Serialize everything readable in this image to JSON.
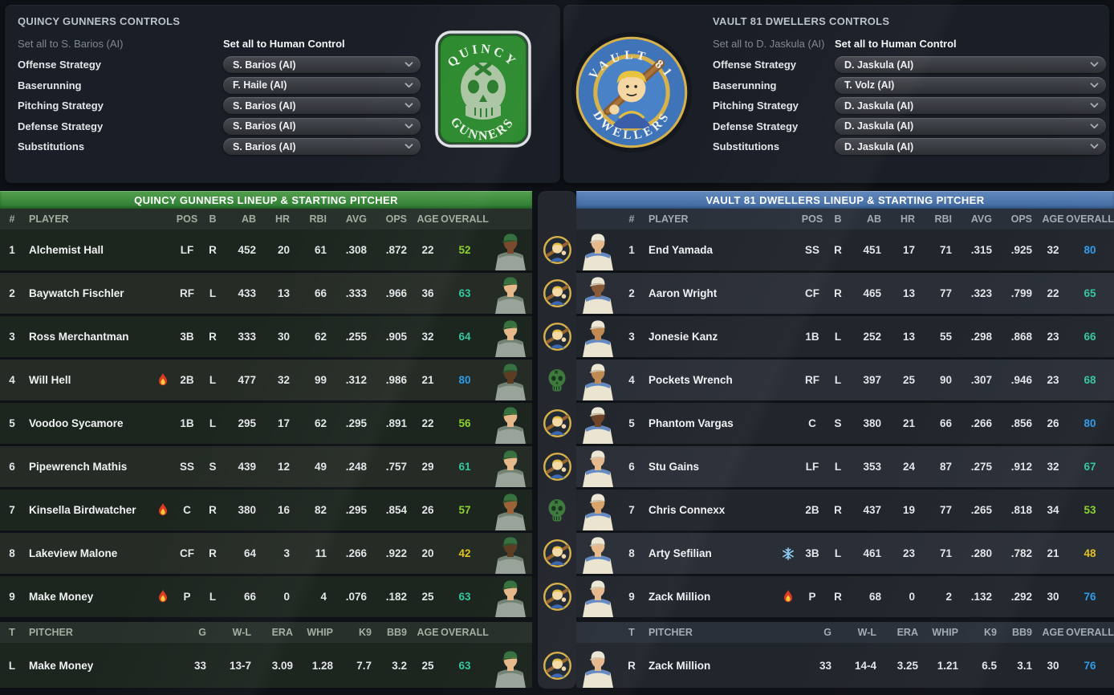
{
  "colors": {
    "left_header_bar": "#3a8c3b",
    "right_header_bar": "#4f7cb4",
    "overall_teal": "#35c79f",
    "overall_lime": "#8bd22f",
    "overall_blue": "#2f9ce8",
    "overall_yellow": "#e2c220"
  },
  "left_controls": {
    "title": "QUINCY GUNNERS CONTROLS",
    "set_all_ai": "Set all to S. Barios (AI)",
    "set_all_human": "Set all to Human Control",
    "rows": [
      {
        "label": "Offense Strategy",
        "value": "S. Barios (AI)"
      },
      {
        "label": "Baserunning",
        "value": "F. Haile (AI)"
      },
      {
        "label": "Pitching Strategy",
        "value": "S. Barios (AI)"
      },
      {
        "label": "Defense Strategy",
        "value": "S. Barios (AI)"
      },
      {
        "label": "Substitutions",
        "value": "S. Barios (AI)"
      }
    ],
    "logo": {
      "top_text": "QUINCY",
      "bottom_text": "GUNNERS",
      "icon": "skull-icon",
      "color": "#2c8a2e"
    }
  },
  "right_controls": {
    "title": "VAULT 81 DWELLERS CONTROLS",
    "set_all_ai": "Set all to D. Jaskula (AI)",
    "set_all_human": "Set all to Human Control",
    "rows": [
      {
        "label": "Offense Strategy",
        "value": "D. Jaskula (AI)"
      },
      {
        "label": "Baserunning",
        "value": "T. Volz (AI)"
      },
      {
        "label": "Pitching Strategy",
        "value": "D. Jaskula (AI)"
      },
      {
        "label": "Defense Strategy",
        "value": "D. Jaskula (AI)"
      },
      {
        "label": "Substitutions",
        "value": "D. Jaskula (AI)"
      }
    ],
    "logo": {
      "top_text": "VAULT 81",
      "bottom_text": "DWELLERS",
      "icon": "vault-boy-icon",
      "color": "#3f74b8"
    }
  },
  "batter_columns": [
    "#",
    "PLAYER",
    "POS",
    "B",
    "AB",
    "HR",
    "RBI",
    "AVG",
    "OPS",
    "AGE",
    "OVERALL"
  ],
  "pitcher_columns": [
    "T",
    "PITCHER",
    "G",
    "W-L",
    "ERA",
    "WHIP",
    "K9",
    "BB9",
    "AGE",
    "OVERALL"
  ],
  "left_table": {
    "title": "QUINCY GUNNERS LINEUP & STARTING PITCHER",
    "rows": [
      {
        "num": "1",
        "name": "Alchemist Hall",
        "badge": null,
        "pos": "LF",
        "b": "R",
        "ab": "452",
        "hr": "20",
        "rbi": "61",
        "avg": ".308",
        "ops": ".872",
        "age": "22",
        "overall": "52",
        "overall_color": "#8bd22f",
        "skin": "#7a4a2e"
      },
      {
        "num": "2",
        "name": "Baywatch Fischler",
        "badge": null,
        "pos": "RF",
        "b": "L",
        "ab": "433",
        "hr": "13",
        "rbi": "66",
        "avg": ".333",
        "ops": ".966",
        "age": "36",
        "overall": "63",
        "overall_color": "#35c79f",
        "skin": "#e6b98c"
      },
      {
        "num": "3",
        "name": "Ross Merchantman",
        "badge": null,
        "pos": "3B",
        "b": "R",
        "ab": "333",
        "hr": "30",
        "rbi": "62",
        "avg": ".255",
        "ops": ".905",
        "age": "32",
        "overall": "64",
        "overall_color": "#35c79f",
        "skin": "#e6b98c"
      },
      {
        "num": "4",
        "name": "Will Hell",
        "badge": "fire",
        "pos": "2B",
        "b": "L",
        "ab": "477",
        "hr": "32",
        "rbi": "99",
        "avg": ".312",
        "ops": ".986",
        "age": "21",
        "overall": "80",
        "overall_color": "#2f9ce8",
        "skin": "#5d3c24"
      },
      {
        "num": "5",
        "name": "Voodoo Sycamore",
        "badge": null,
        "pos": "1B",
        "b": "L",
        "ab": "295",
        "hr": "17",
        "rbi": "62",
        "avg": ".295",
        "ops": ".891",
        "age": "22",
        "overall": "56",
        "overall_color": "#8bd22f",
        "skin": "#e6b98c"
      },
      {
        "num": "6",
        "name": "Pipewrench Mathis",
        "badge": null,
        "pos": "SS",
        "b": "S",
        "ab": "439",
        "hr": "12",
        "rbi": "49",
        "avg": ".248",
        "ops": ".757",
        "age": "29",
        "overall": "61",
        "overall_color": "#35c79f",
        "skin": "#e6b98c"
      },
      {
        "num": "7",
        "name": "Kinsella Birdwatcher",
        "badge": "fire",
        "pos": "C",
        "b": "R",
        "ab": "380",
        "hr": "16",
        "rbi": "82",
        "avg": ".295",
        "ops": ".854",
        "age": "26",
        "overall": "57",
        "overall_color": "#8bd22f",
        "skin": "#9c6238"
      },
      {
        "num": "8",
        "name": "Lakeview Malone",
        "badge": null,
        "pos": "CF",
        "b": "R",
        "ab": "64",
        "hr": "3",
        "rbi": "11",
        "avg": ".266",
        "ops": ".922",
        "age": "20",
        "overall": "42",
        "overall_color": "#e2c220",
        "skin": "#5d3c24"
      },
      {
        "num": "9",
        "name": "Make Money",
        "badge": "fire",
        "pos": "P",
        "b": "L",
        "ab": "66",
        "hr": "0",
        "rbi": "4",
        "avg": ".076",
        "ops": ".182",
        "age": "25",
        "overall": "63",
        "overall_color": "#35c79f",
        "skin": "#e6b98c"
      }
    ],
    "pitcher": {
      "t": "L",
      "name": "Make Money",
      "g": "33",
      "wl": "13-7",
      "era": "3.09",
      "whip": "1.28",
      "k9": "7.7",
      "bb9": "3.2",
      "age": "25",
      "overall": "63",
      "overall_color": "#35c79f",
      "skin": "#e6b98c"
    }
  },
  "right_table": {
    "title": "VAULT 81 DWELLERS LINEUP & STARTING PITCHER",
    "rows": [
      {
        "num": "1",
        "name": "End Yamada",
        "badge": null,
        "pos": "SS",
        "b": "R",
        "ab": "451",
        "hr": "17",
        "rbi": "71",
        "avg": ".315",
        "ops": ".925",
        "age": "32",
        "overall": "80",
        "overall_color": "#2f9ce8",
        "skin": "#e6b98c"
      },
      {
        "num": "2",
        "name": "Aaron Wright",
        "badge": null,
        "pos": "CF",
        "b": "R",
        "ab": "465",
        "hr": "13",
        "rbi": "77",
        "avg": ".323",
        "ops": ".799",
        "age": "22",
        "overall": "65",
        "overall_color": "#35c79f",
        "skin": "#8a5a38"
      },
      {
        "num": "3",
        "name": "Jonesie Kanz",
        "badge": null,
        "pos": "1B",
        "b": "L",
        "ab": "252",
        "hr": "13",
        "rbi": "55",
        "avg": ".298",
        "ops": ".868",
        "age": "23",
        "overall": "66",
        "overall_color": "#35c79f",
        "skin": "#c08a52"
      },
      {
        "num": "4",
        "name": "Pockets Wrench",
        "badge": null,
        "pos": "RF",
        "b": "L",
        "ab": "397",
        "hr": "25",
        "rbi": "90",
        "avg": ".307",
        "ops": ".946",
        "age": "23",
        "overall": "68",
        "overall_color": "#35c79f",
        "skin": "#c08a52"
      },
      {
        "num": "5",
        "name": "Phantom Vargas",
        "badge": null,
        "pos": "C",
        "b": "S",
        "ab": "380",
        "hr": "21",
        "rbi": "66",
        "avg": ".266",
        "ops": ".856",
        "age": "26",
        "overall": "80",
        "overall_color": "#2f9ce8",
        "skin": "#6f4328"
      },
      {
        "num": "6",
        "name": "Stu Gains",
        "badge": null,
        "pos": "LF",
        "b": "L",
        "ab": "353",
        "hr": "24",
        "rbi": "87",
        "avg": ".275",
        "ops": ".912",
        "age": "32",
        "overall": "67",
        "overall_color": "#35c79f",
        "skin": "#e6b98c"
      },
      {
        "num": "7",
        "name": "Chris Connexx",
        "badge": null,
        "pos": "2B",
        "b": "R",
        "ab": "437",
        "hr": "19",
        "rbi": "77",
        "avg": ".265",
        "ops": ".818",
        "age": "34",
        "overall": "53",
        "overall_color": "#8bd22f",
        "skin": "#d9a36b"
      },
      {
        "num": "8",
        "name": "Arty Sefilian",
        "badge": "snow",
        "pos": "3B",
        "b": "L",
        "ab": "461",
        "hr": "23",
        "rbi": "71",
        "avg": ".280",
        "ops": ".782",
        "age": "21",
        "overall": "48",
        "overall_color": "#e2c220",
        "skin": "#e6b98c"
      },
      {
        "num": "9",
        "name": "Zack Million",
        "badge": "fire",
        "pos": "P",
        "b": "R",
        "ab": "68",
        "hr": "0",
        "rbi": "2",
        "avg": ".132",
        "ops": ".292",
        "age": "30",
        "overall": "76",
        "overall_color": "#2f9ce8",
        "skin": "#e6b98c"
      }
    ],
    "pitcher": {
      "t": "R",
      "name": "Zack Million",
      "g": "33",
      "wl": "14-4",
      "era": "3.25",
      "whip": "1.21",
      "k9": "6.5",
      "bb9": "3.1",
      "age": "30",
      "overall": "76",
      "overall_color": "#2f9ce8",
      "skin": "#e6b98c"
    }
  },
  "matchup_strip": {
    "row_icons": [
      "vault-boy-icon",
      "vault-boy-icon",
      "vault-boy-icon",
      "skull-icon",
      "vault-boy-icon",
      "vault-boy-icon",
      "skull-icon",
      "vault-boy-icon",
      "vault-boy-icon"
    ],
    "pitcher_icon": "vault-boy-icon"
  }
}
